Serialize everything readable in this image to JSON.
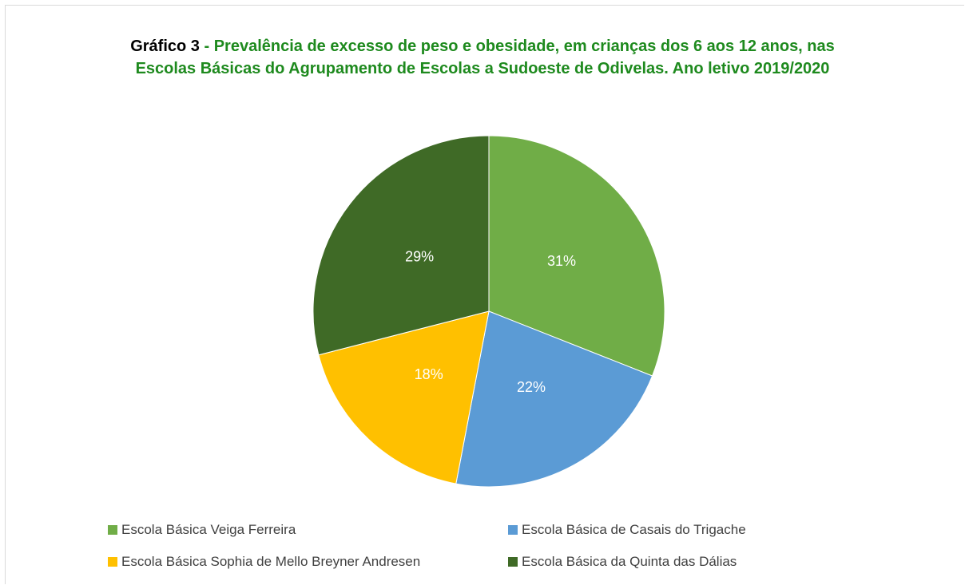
{
  "chart_data": {
    "type": "pie",
    "title_prefix": "Gráfico 3",
    "title": "- Prevalência de excesso de peso e obesidade, em crianças dos 6 aos 12 anos, nas Escolas Básicas do Agrupamento de Escolas a Sudoeste de Odivelas. Ano letivo 2019/2020",
    "categories": [
      "Escola Básica Veiga Ferreira",
      "Escola Básica de Casais do Trigache",
      "Escola Básica Sophia de Mello Breyner Andresen",
      "Escola Básica da Quinta das Dálias"
    ],
    "values": [
      31,
      22,
      18,
      29
    ],
    "value_labels": [
      "31%",
      "22%",
      "18%",
      "29%"
    ],
    "colors": [
      "#70ad47",
      "#5b9bd5",
      "#ffc000",
      "#3f6a26"
    ],
    "legend": "bottom"
  }
}
